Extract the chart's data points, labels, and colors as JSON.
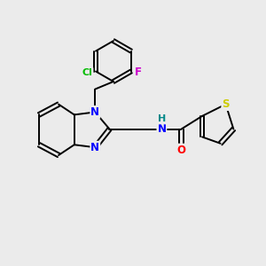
{
  "bg_color": "#ebebeb",
  "bond_color": "#000000",
  "bond_lw": 1.4,
  "atom_colors": {
    "N": "#0000ff",
    "O": "#ff0000",
    "S": "#cccc00",
    "Cl": "#00bb00",
    "F": "#cc00cc",
    "H": "#008888",
    "C": "#000000"
  },
  "font_size": 8.5
}
